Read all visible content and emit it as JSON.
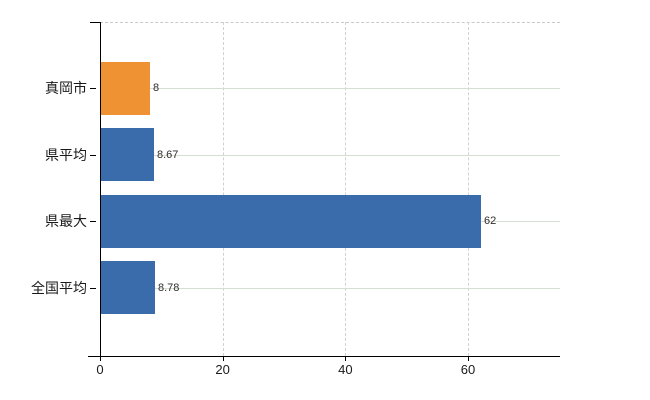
{
  "chart_data": {
    "type": "bar",
    "orientation": "horizontal",
    "title": "",
    "categories": [
      "真岡市",
      "県平均",
      "県最大",
      "全国平均"
    ],
    "values": [
      8,
      8.67,
      62,
      8.78
    ],
    "value_labels": [
      "8",
      "8.67",
      "62",
      "8.78"
    ],
    "bar_colors": [
      "#ef9233",
      "#3a6cab",
      "#3a6cab",
      "#3a6cab"
    ],
    "x_ticks": [
      0,
      20,
      40,
      60
    ],
    "x_tick_labels": [
      "0",
      "20",
      "40",
      "60"
    ],
    "xlim": [
      0,
      75
    ],
    "grid": "on",
    "legend": "none"
  },
  "colors": {
    "bar_orange": "#ef9233",
    "bar_blue": "#3a6cab",
    "axis": "#000000",
    "grid_horizontal": "#d6ddd2",
    "grid_vertical": "#ccd4cb",
    "plot_border_dashed": "#c9c9c9",
    "value_label": "#2e2e2e",
    "tick_label": "#1a1a1a",
    "background": "#ffffff"
  }
}
